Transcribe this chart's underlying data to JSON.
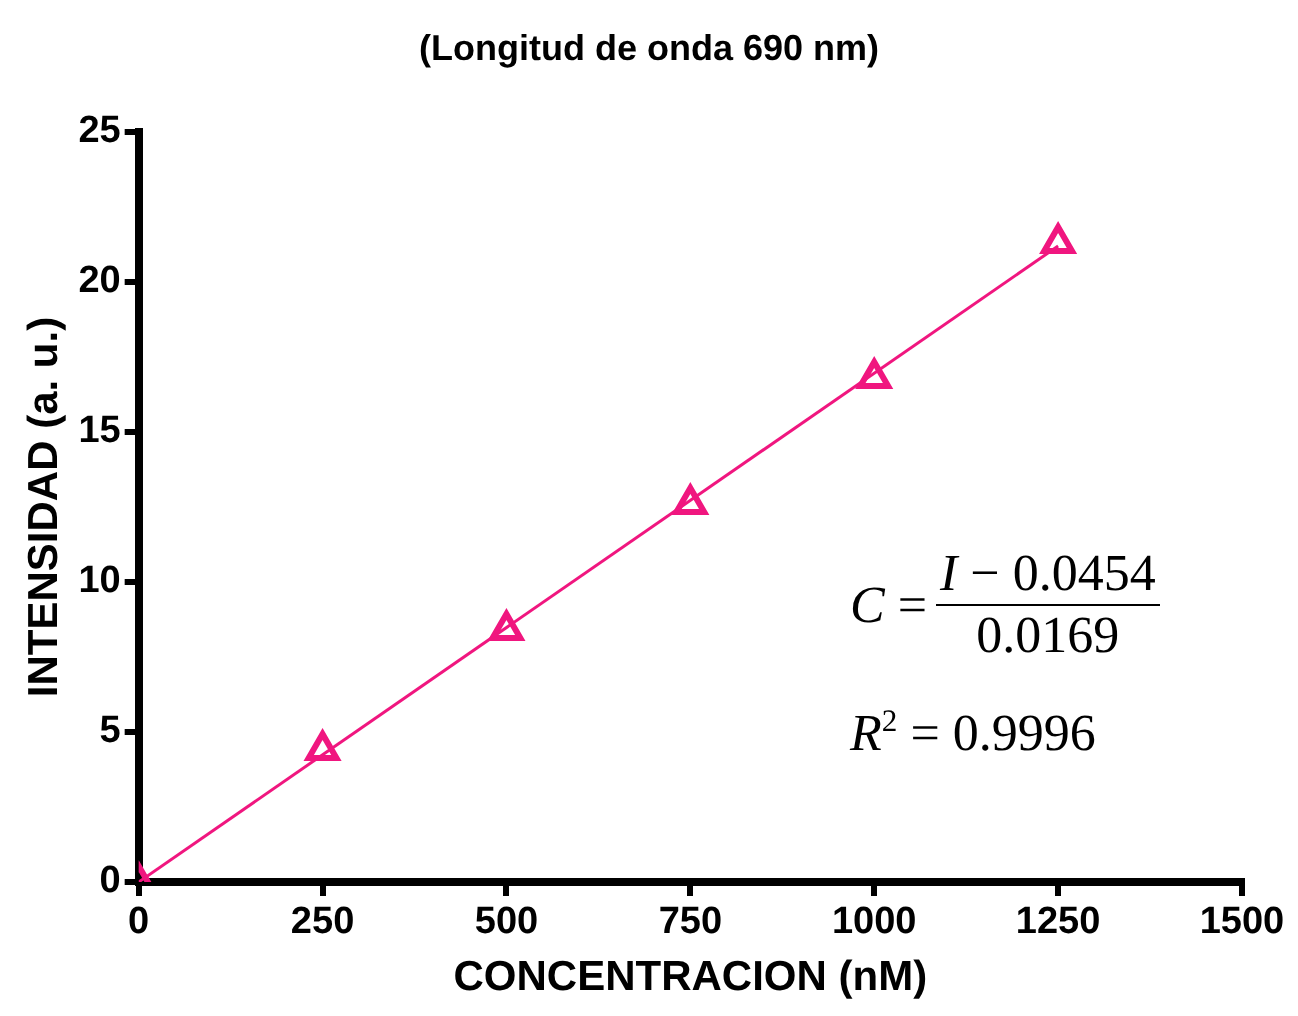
{
  "chart_data": {
    "type": "scatter",
    "title": "(Longitud de onda 690 nm)",
    "xlabel": "CONCENTRACION (nM)",
    "ylabel": "INTENSIDAD (a. u.)",
    "x": [
      0,
      250,
      500,
      750,
      1000,
      1250
    ],
    "series": [
      {
        "color": "#f0167f",
        "values": [
          0,
          4.4,
          8.4,
          12.6,
          16.8,
          21.3
        ],
        "marker": "triangle"
      },
      {
        "type": "line",
        "color": "#f0167f",
        "x": [
          0,
          1250
        ],
        "values": [
          0,
          21.2
        ],
        "marker": "none"
      }
    ],
    "xlim": [
      0,
      1500
    ],
    "xticks": [
      0,
      250,
      500,
      750,
      1000,
      1250,
      1500
    ],
    "ylim": [
      0,
      25
    ],
    "yticks": [
      0,
      5,
      10,
      15,
      20,
      25
    ],
    "grid": false,
    "legend": false,
    "annotations": [
      "C =",
      "I − 0.0454",
      "0.0169",
      "R$^{2}$ = 0.9996"
    ]
  }
}
